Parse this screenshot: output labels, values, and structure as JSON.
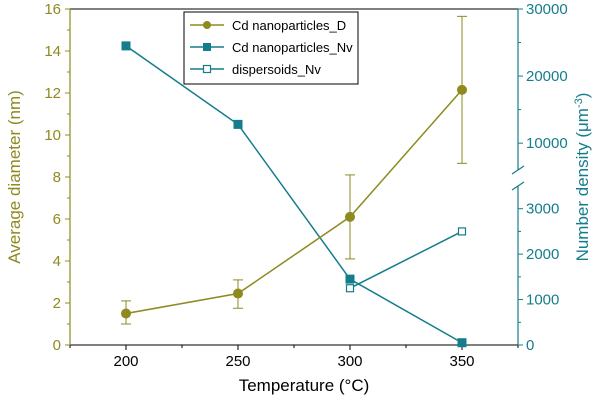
{
  "chart_data": {
    "type": "line",
    "title": "",
    "xlabel": "Temperature (°C)",
    "ylabel_left": "Average diameter (nm)",
    "ylabel_right_prefix": "Number density (",
    "ylabel_right_unit": "μm",
    "ylabel_right_exp": "-3",
    "ylabel_right_suffix": ")",
    "xlim": [
      175,
      375
    ],
    "ylim_left": [
      0,
      16
    ],
    "right_axis_lower_range": [
      0,
      3500
    ],
    "right_axis_upper_range": [
      6000,
      30000
    ],
    "right_axis_break": true,
    "x_ticks": [
      200,
      250,
      300,
      350
    ],
    "y_left_ticks": [
      0,
      2,
      4,
      6,
      8,
      10,
      12,
      14,
      16
    ],
    "y_right_ticks": [
      0,
      1000,
      2000,
      3000,
      10000,
      20000,
      30000
    ],
    "grid": false,
    "legend_position": "top-center",
    "colors": {
      "diameter": "#8e8a1f",
      "density": "#147d8c",
      "axis_left": "#8e8a1f",
      "axis_right": "#147d8c"
    },
    "series": [
      {
        "name": "Cd nanoparticles_D",
        "axis": "left",
        "marker": "filled-circle",
        "x": [
          200,
          250,
          300,
          350
        ],
        "y": [
          1.5,
          2.45,
          6.1,
          12.15
        ],
        "err_low": [
          0.5,
          0.7,
          2.0,
          3.5
        ],
        "err_high": [
          0.6,
          0.65,
          2.0,
          3.5
        ]
      },
      {
        "name": "Cd nanoparticles_Nv",
        "axis": "right",
        "marker": "filled-square",
        "x": [
          200,
          250,
          300,
          350
        ],
        "y": [
          24500,
          12800,
          1450,
          50
        ]
      },
      {
        "name": "dispersoids_Nv",
        "axis": "right",
        "marker": "open-square",
        "x": [
          300,
          350
        ],
        "y": [
          1250,
          2500
        ]
      }
    ]
  }
}
